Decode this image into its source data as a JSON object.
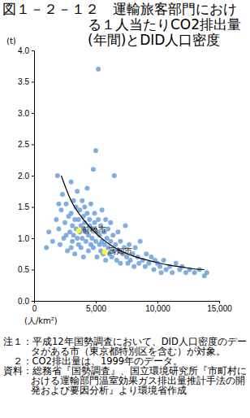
{
  "chart_data": {
    "type": "scatter",
    "title": "図１－２－１２　運輸旅客部門における１人当たりCO2排出量(年間)とDID人口密度",
    "x_label": "(人/km²)",
    "y_label": "(t)",
    "xlim": [
      0,
      15000
    ],
    "ylim": [
      0,
      4
    ],
    "xticks": [
      0,
      {
        "value": 5000,
        "label": "5,000"
      },
      {
        "value": 10000,
        "label": "10,000"
      },
      {
        "value": 15000,
        "label": "15,000"
      }
    ],
    "yticks": [
      {
        "value": 0,
        "label": "0.0"
      },
      0.5,
      {
        "value": 1,
        "label": "1.0"
      },
      1.5,
      {
        "value": 2,
        "label": "2.0"
      },
      2.5,
      {
        "value": 3,
        "label": "3.0"
      },
      3.5,
      {
        "value": 4,
        "label": "4.0"
      }
    ],
    "grid": false,
    "series": [
      {
        "type": "scatter",
        "marker": "circle",
        "color": "#6b9fdc",
        "x": [
          1000,
          1200,
          1500,
          1800,
          1900,
          2000,
          2100,
          2200,
          2300,
          2400,
          2500,
          2600,
          2700,
          2800,
          2900,
          3000,
          3000,
          3100,
          3100,
          3200,
          3200,
          3300,
          3300,
          3400,
          3400,
          3500,
          3500,
          3600,
          3600,
          3700,
          3700,
          3800,
          3800,
          3900,
          3900,
          4000,
          4000,
          4000,
          4100,
          4100,
          4200,
          4200,
          4300,
          4300,
          4400,
          4400,
          4500,
          4500,
          4600,
          4600,
          4700,
          4700,
          4800,
          4800,
          4900,
          4900,
          5000,
          5000,
          5100,
          5100,
          5200,
          5200,
          5300,
          5300,
          5400,
          5400,
          5500,
          5500,
          5600,
          5700,
          5700,
          5800,
          5800,
          5900,
          6000,
          6000,
          6100,
          6200,
          6200,
          6300,
          6400,
          6500,
          6500,
          6600,
          6700,
          6800,
          6900,
          7000,
          7000,
          7200,
          7300,
          7400,
          7500,
          7600,
          7700,
          7800,
          8000,
          8100,
          8200,
          8400,
          8500,
          8600,
          8800,
          9000,
          9100,
          9300,
          9500,
          9700,
          9800,
          10000,
          10200,
          10300,
          10500,
          10700,
          11000,
          11200,
          11500,
          11800,
          12000,
          12300,
          12600,
          13000,
          13400,
          13800,
          14000,
          2000,
          2600,
          3000
        ],
        "values": [
          0.85,
          1.1,
          0.95,
          1.3,
          2.0,
          1.15,
          0.9,
          1.45,
          1.7,
          1.0,
          1.25,
          1.55,
          0.8,
          1.35,
          1.1,
          1.9,
          1.4,
          1.2,
          0.95,
          1.6,
          1.05,
          1.3,
          0.75,
          1.5,
          1.15,
          1.0,
          1.75,
          1.3,
          0.9,
          1.45,
          1.1,
          1.2,
          0.85,
          1.6,
          1.0,
          1.35,
          1.15,
          0.7,
          1.25,
          1.5,
          0.95,
          1.1,
          1.4,
          1.8,
          1.05,
          0.8,
          1.3,
          1.2,
          0.9,
          1.55,
          1.0,
          1.15,
          2.1,
          0.85,
          1.25,
          1.4,
          2.4,
          0.95,
          1.1,
          0.7,
          3.7,
          1.3,
          0.9,
          1.05,
          1.2,
          0.8,
          1.45,
          0.95,
          0.75,
          1.1,
          0.9,
          1.3,
          0.65,
          1.0,
          0.85,
          1.15,
          0.75,
          1.25,
          0.95,
          0.7,
          1.05,
          0.8,
          2.0,
          0.9,
          0.65,
          1.1,
          0.8,
          0.95,
          0.6,
          0.75,
          0.85,
          1.2,
          0.7,
          0.6,
          0.9,
          0.65,
          0.75,
          0.55,
          0.85,
          0.7,
          0.6,
          0.95,
          0.65,
          0.55,
          0.75,
          0.6,
          0.7,
          0.5,
          0.65,
          0.6,
          0.55,
          0.45,
          0.65,
          0.5,
          0.55,
          0.45,
          0.6,
          0.5,
          0.55,
          0.45,
          0.5,
          0.45,
          0.5,
          0.4,
          0.45,
          1.55,
          1.05,
          0.85
        ]
      },
      {
        "type": "line",
        "line_style": "solid",
        "color": "#000000",
        "x": [
          2200,
          3000,
          4000,
          5000,
          6000,
          7000,
          8000,
          9000,
          10000,
          11000,
          12000,
          13000,
          13800
        ],
        "values": [
          2.0,
          1.6,
          1.3,
          1.08,
          0.92,
          0.8,
          0.72,
          0.66,
          0.61,
          0.57,
          0.54,
          0.51,
          0.5
        ]
      }
    ],
    "annotations": [
      {
        "text": "前橋市",
        "x": 3600,
        "y": 1.12,
        "color": "#ffff00"
      },
      {
        "text": "高知市",
        "x": 5700,
        "y": 0.78,
        "color": "#ffff00"
      }
    ],
    "notes": [
      "注１：平成12年国勢調査において、DID人口密度のデータがある市（東京都特別区を含む）が対象。",
      "２：CO2排出量は、1999年のデータ。",
      "資料：総務省『国勢調査』、国立環境研究所『市町村における運輸部門温室効果ガス排出量推計手法の開発および要因分析』より環境省作成"
    ]
  }
}
